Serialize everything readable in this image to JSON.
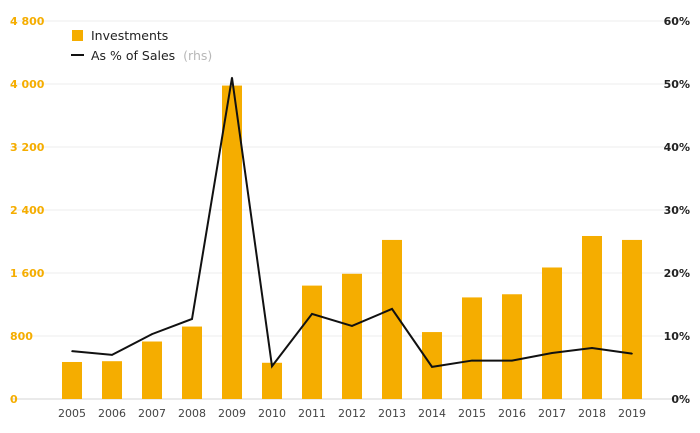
{
  "chart_data": {
    "type": "bar",
    "categories": [
      "2005",
      "2006",
      "2007",
      "2008",
      "2009",
      "2010",
      "2011",
      "2012",
      "2013",
      "2014",
      "2015",
      "2016",
      "2017",
      "2018",
      "2019"
    ],
    "series": [
      {
        "name": "Investments",
        "type": "bar",
        "axis": "left",
        "color": "#f5ad00",
        "values": [
          470,
          480,
          730,
          920,
          3980,
          460,
          1440,
          1590,
          2020,
          850,
          1290,
          1330,
          1670,
          2070,
          2020
        ]
      },
      {
        "name": "As % of Sales",
        "name_suffix": "(rhs)",
        "type": "line",
        "axis": "right",
        "color": "#111111",
        "values": [
          7.6,
          7.0,
          10.3,
          12.7,
          51.0,
          5.2,
          13.5,
          11.6,
          14.3,
          5.1,
          6.1,
          6.1,
          7.3,
          8.1,
          7.2
        ]
      }
    ],
    "y_left": {
      "min": 0,
      "max": 4800,
      "ticks": [
        "0",
        "800",
        "1 600",
        "2 400",
        "3 200",
        "4 000",
        "4 800"
      ]
    },
    "y_right": {
      "min": 0,
      "max": 60,
      "ticks": [
        "0%",
        "10%",
        "20%",
        "30%",
        "40%",
        "50%",
        "60%"
      ]
    },
    "grid": true,
    "legend": "top-left"
  }
}
